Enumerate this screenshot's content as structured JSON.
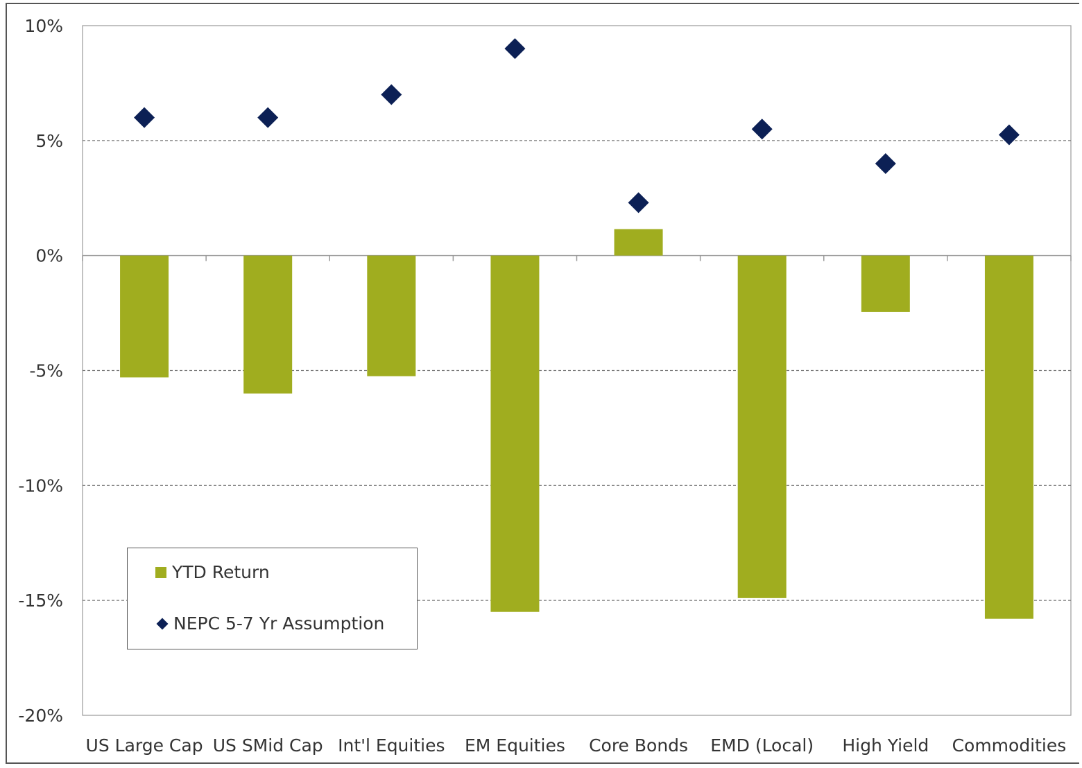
{
  "chart_data": {
    "type": "bar",
    "categories": [
      "US Large Cap",
      "US SMid Cap",
      "Int'l Equities",
      "EM Equities",
      "Core Bonds",
      "EMD (Local)",
      "High Yield",
      "Commodities"
    ],
    "series": [
      {
        "name": "YTD Return",
        "kind": "bar",
        "values": [
          -5.3,
          -6.0,
          -5.25,
          -15.5,
          1.15,
          -14.9,
          -2.45,
          -15.8
        ]
      },
      {
        "name": "NEPC 5-7 Yr Assumption",
        "kind": "marker",
        "values": [
          6.0,
          6.0,
          7.0,
          9.0,
          2.3,
          5.5,
          4.0,
          5.25
        ]
      }
    ],
    "yticks": [
      "10%",
      "5%",
      "0%",
      "-5%",
      "-10%",
      "-15%",
      "-20%"
    ],
    "ytick_values": [
      10,
      5,
      0,
      -5,
      -10,
      -15,
      -20
    ],
    "ylim": [
      -20,
      10
    ],
    "grid": "horizontal dashed",
    "legend_position": "bottom-left",
    "colors": {
      "bar": "#a0ad1f",
      "marker": "#0c2055",
      "grid": "#777777",
      "axis": "#999999"
    }
  }
}
